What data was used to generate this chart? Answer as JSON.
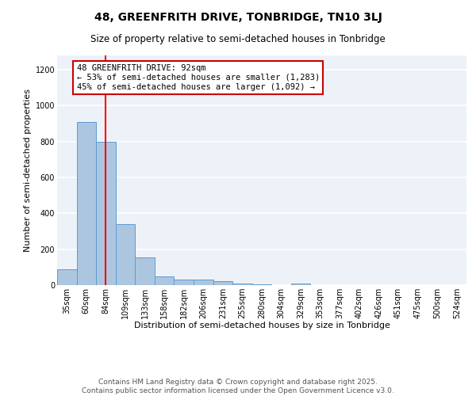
{
  "title": "48, GREENFRITH DRIVE, TONBRIDGE, TN10 3LJ",
  "subtitle": "Size of property relative to semi-detached houses in Tonbridge",
  "xlabel": "Distribution of semi-detached houses by size in Tonbridge",
  "ylabel": "Number of semi-detached properties",
  "categories": [
    "35sqm",
    "60sqm",
    "84sqm",
    "109sqm",
    "133sqm",
    "158sqm",
    "182sqm",
    "206sqm",
    "231sqm",
    "255sqm",
    "280sqm",
    "304sqm",
    "329sqm",
    "353sqm",
    "377sqm",
    "402sqm",
    "426sqm",
    "451sqm",
    "475sqm",
    "500sqm",
    "524sqm"
  ],
  "values": [
    90,
    910,
    800,
    340,
    155,
    50,
    30,
    30,
    20,
    8,
    5,
    0,
    10,
    0,
    0,
    0,
    0,
    0,
    0,
    0,
    0
  ],
  "bar_color": "#adc6e0",
  "bar_edge_color": "#5b9bd5",
  "red_line_index": 2,
  "annotation_line1": "48 GREENFRITH DRIVE: 92sqm",
  "annotation_line2": "← 53% of semi-detached houses are smaller (1,283)",
  "annotation_line3": "45% of semi-detached houses are larger (1,092) →",
  "annotation_box_color": "#ffffff",
  "annotation_box_edge_color": "#cc0000",
  "ylim": [
    0,
    1280
  ],
  "yticks": [
    0,
    200,
    400,
    600,
    800,
    1000,
    1200
  ],
  "background_color": "#edf2f9",
  "grid_color": "#ffffff",
  "footer_line1": "Contains HM Land Registry data © Crown copyright and database right 2025.",
  "footer_line2": "Contains public sector information licensed under the Open Government Licence v3.0.",
  "title_fontsize": 10,
  "subtitle_fontsize": 8.5,
  "axis_label_fontsize": 8,
  "tick_fontsize": 7,
  "annotation_fontsize": 7.5,
  "footer_fontsize": 6.5
}
